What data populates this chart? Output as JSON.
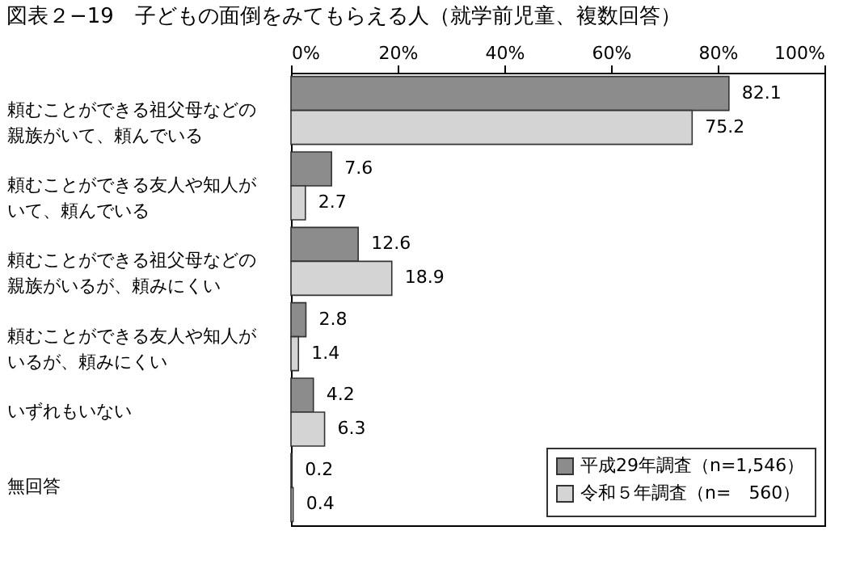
{
  "chart_data": {
    "type": "bar",
    "orientation": "horizontal",
    "title": "図表２−19　子どもの面倒をみてもらえる人（就学前児童、複数回答）",
    "categories": [
      "頼むことができる祖父母などの親族がいて、頼んでいる",
      "頼むことができる友人や知人がいて、頼んでいる",
      "頼むことができる祖父母などの親族がいるが、頼みにくい",
      "頼むことができる友人や知人がいるが、頼みにくい",
      "いずれもいない",
      "無回答"
    ],
    "series": [
      {
        "name": "平成29年調査（n=1,546）",
        "color": "#8c8c8c",
        "values": [
          82.1,
          7.6,
          12.6,
          2.8,
          4.2,
          0.2
        ]
      },
      {
        "name": "令和５年調査（n=　560）",
        "color": "#d4d4d4",
        "values": [
          75.2,
          2.7,
          18.9,
          1.4,
          6.3,
          0.4
        ]
      }
    ],
    "xlim": [
      0,
      100
    ],
    "xticks": [
      {
        "value": 0,
        "label": "0%"
      },
      {
        "value": 20,
        "label": "20%"
      },
      {
        "value": 40,
        "label": "40%"
      },
      {
        "value": 60,
        "label": "60%"
      },
      {
        "value": 80,
        "label": "80%"
      },
      {
        "value": 100,
        "label": "100%"
      }
    ],
    "data_labels": true,
    "legend": "bottom right",
    "grid": false
  }
}
